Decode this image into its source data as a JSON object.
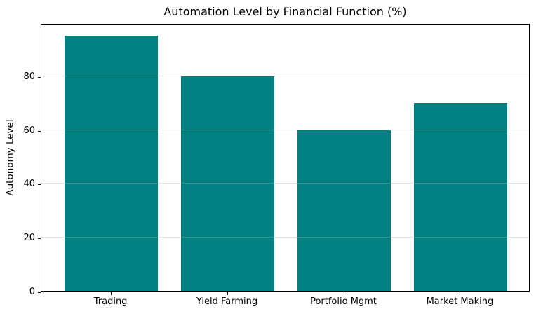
{
  "chart_data": {
    "type": "bar",
    "title": "Automation Level by Financial Function (%)",
    "categories": [
      "Trading",
      "Yield Farming",
      "Portfolio Mgmt",
      "Market Making"
    ],
    "values": [
      95,
      80,
      60,
      70
    ],
    "xlabel": "",
    "ylabel": "Autonomy Level",
    "ylim": [
      0,
      99.75
    ],
    "yticks": [
      0,
      20,
      40,
      60,
      80
    ],
    "bar_color": "#008080",
    "grid": "y-only",
    "grid_color": "rgba(176,176,176,0.35)",
    "axis_color": "#000000",
    "background_color": "#ffffff",
    "legend": "none"
  }
}
